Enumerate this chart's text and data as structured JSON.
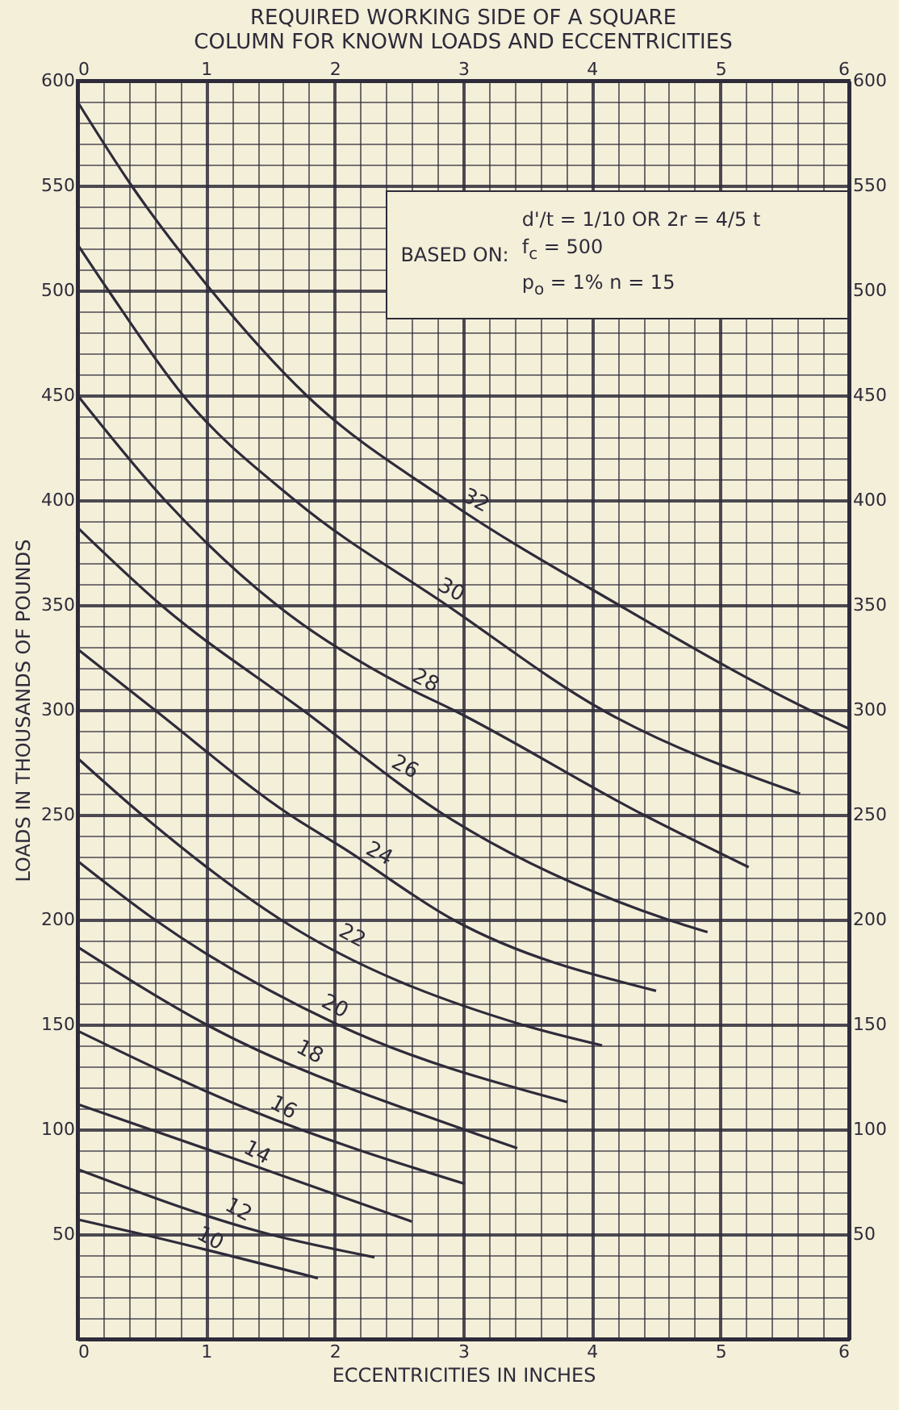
{
  "chart_data": {
    "type": "line",
    "title": "REQUIRED WORKING SIDE OF A SQUARE\nCOLUMN FOR KNOWN LOADS AND ECCENTRICITIES",
    "xlabel": "ECCENTRICITIES IN INCHES",
    "ylabel": "LOADS IN THOUSANDS OF POUNDS",
    "annotations": [
      "BASED ON:",
      "d'/t = 1/10 OR 2r = 4/5 t",
      "f$_{c}$ = 500",
      "p$_{o}$ = 1%   n = 15"
    ],
    "xlim": [
      0,
      6
    ],
    "ylim": [
      0,
      600
    ],
    "x2lim": [
      0,
      6
    ],
    "y2lim": [
      0,
      600
    ],
    "xticks": [
      0,
      {
        "value": 0.2,
        "label": null
      },
      {
        "value": 0.4,
        "label": null
      },
      {
        "value": 0.6,
        "label": null
      },
      {
        "value": 0.8,
        "label": null
      },
      1,
      {
        "value": 1.2,
        "label": null
      },
      {
        "value": 1.4,
        "label": null
      },
      {
        "value": 1.6,
        "label": null
      },
      {
        "value": 1.8,
        "label": null
      },
      2,
      {
        "value": 2.2,
        "label": null
      },
      {
        "value": 2.4,
        "label": null
      },
      {
        "value": 2.6,
        "label": null
      },
      {
        "value": 2.8,
        "label": null
      },
      3,
      {
        "value": 3.2,
        "label": null
      },
      {
        "value": 3.4,
        "label": null
      },
      {
        "value": 3.6,
        "label": null
      },
      {
        "value": 3.8,
        "label": null
      },
      4,
      {
        "value": 4.2,
        "label": null
      },
      {
        "value": 4.4,
        "label": null
      },
      {
        "value": 4.6,
        "label": null
      },
      {
        "value": 4.8,
        "label": null
      },
      5,
      {
        "value": 5.2,
        "label": null
      },
      {
        "value": 5.4,
        "label": null
      },
      {
        "value": 5.6,
        "label": null
      },
      {
        "value": 5.8,
        "label": null
      },
      6
    ],
    "x2ticks": [
      0,
      1,
      2,
      3,
      4,
      5,
      6
    ],
    "yticks": [
      {
        "value": 0,
        "label": null
      },
      {
        "value": 10,
        "label": null
      },
      {
        "value": 20,
        "label": null
      },
      {
        "value": 30,
        "label": null
      },
      {
        "value": 40,
        "label": null
      },
      50,
      {
        "value": 60,
        "label": null
      },
      {
        "value": 70,
        "label": null
      },
      {
        "value": 80,
        "label": null
      },
      {
        "value": 90,
        "label": null
      },
      100,
      {
        "value": 110,
        "label": null
      },
      {
        "value": 120,
        "label": null
      },
      {
        "value": 130,
        "label": null
      },
      {
        "value": 140,
        "label": null
      },
      150,
      {
        "value": 160,
        "label": null
      },
      {
        "value": 170,
        "label": null
      },
      {
        "value": 180,
        "label": null
      },
      {
        "value": 190,
        "label": null
      },
      200,
      {
        "value": 210,
        "label": null
      },
      {
        "value": 220,
        "label": null
      },
      {
        "value": 230,
        "label": null
      },
      {
        "value": 240,
        "label": null
      },
      250,
      {
        "value": 260,
        "label": null
      },
      {
        "value": 270,
        "label": null
      },
      {
        "value": 280,
        "label": null
      },
      {
        "value": 290,
        "label": null
      },
      300,
      {
        "value": 310,
        "label": null
      },
      {
        "value": 320,
        "label": null
      },
      {
        "value": 330,
        "label": null
      },
      {
        "value": 340,
        "label": null
      },
      350,
      {
        "value": 360,
        "label": null
      },
      {
        "value": 370,
        "label": null
      },
      {
        "value": 380,
        "label": null
      },
      {
        "value": 390,
        "label": null
      },
      400,
      {
        "value": 410,
        "label": null
      },
      {
        "value": 420,
        "label": null
      },
      {
        "value": 430,
        "label": null
      },
      {
        "value": 440,
        "label": null
      },
      450,
      {
        "value": 460,
        "label": null
      },
      {
        "value": 470,
        "label": null
      },
      {
        "value": 480,
        "label": null
      },
      {
        "value": 490,
        "label": null
      },
      500,
      {
        "value": 510,
        "label": null
      },
      {
        "value": 520,
        "label": null
      },
      {
        "value": 530,
        "label": null
      },
      {
        "value": 540,
        "label": null
      },
      550,
      {
        "value": 560,
        "label": null
      },
      {
        "value": 570,
        "label": null
      },
      {
        "value": 580,
        "label": null
      },
      {
        "value": 590,
        "label": null
      },
      600
    ],
    "y2ticks": [
      50,
      100,
      150,
      200,
      250,
      300,
      350,
      400,
      450,
      500,
      550,
      600
    ],
    "grid": true,
    "series": [
      {
        "name": "32",
        "color": "#2e2b3a",
        "x": [
          0,
          0.42,
          1.04,
          1.78,
          2.87,
          4.21,
          5.69,
          6
        ],
        "values": [
          590,
          550,
          500,
          450,
          400,
          350,
          300,
          291
        ]
      },
      {
        "name": "30",
        "color": "#2e2b3a",
        "x": [
          0,
          0.24,
          0.82,
          1.69,
          2.87,
          4.08,
          5.62
        ],
        "values": [
          522,
          500,
          450,
          400,
          350,
          300,
          260
        ]
      },
      {
        "name": "28",
        "color": "#2e2b3a",
        "x": [
          0,
          0.68,
          1.55,
          2.52,
          2.92,
          4.4,
          5.22
        ],
        "values": [
          450,
          400,
          350,
          312,
          300,
          250,
          225
        ]
      },
      {
        "name": "26",
        "color": "#2e2b3a",
        "x": [
          0,
          0.65,
          1.75,
          2.85,
          4.59,
          4.9
        ],
        "values": [
          387,
          350,
          300,
          250,
          200,
          194
        ]
      },
      {
        "name": "24",
        "color": "#2e2b3a",
        "x": [
          0,
          0.6,
          1.65,
          2.07,
          2.92,
          4.5
        ],
        "values": [
          329,
          300,
          250,
          234,
          200,
          166
        ]
      },
      {
        "name": "22",
        "color": "#2e2b3a",
        "x": [
          0,
          0.5,
          1.58,
          3.45,
          4.08
        ],
        "values": [
          277,
          250,
          200,
          150,
          140
        ]
      },
      {
        "name": "20",
        "color": "#2e2b3a",
        "x": [
          0,
          0.6,
          2.02,
          3.81
        ],
        "values": [
          228,
          200,
          150,
          113
        ]
      },
      {
        "name": "18",
        "color": "#2e2b3a",
        "x": [
          0,
          1.0,
          3.0,
          3.42
        ],
        "values": [
          187,
          150,
          100,
          91
        ]
      },
      {
        "name": "16",
        "color": "#2e2b3a",
        "x": [
          0,
          1.35,
          3.01
        ],
        "values": [
          147,
          109,
          74
        ]
      },
      {
        "name": "14",
        "color": "#2e2b3a",
        "x": [
          0,
          1.22,
          2.6
        ],
        "values": [
          112,
          86,
          56
        ]
      },
      {
        "name": "12",
        "color": "#2e2b3a",
        "x": [
          0,
          1.49,
          2.31
        ],
        "values": [
          81,
          50,
          39
        ]
      },
      {
        "name": "10",
        "color": "#2e2b3a",
        "x": [
          0,
          0.5,
          1.87
        ],
        "values": [
          57,
          50,
          29
        ]
      }
    ]
  }
}
